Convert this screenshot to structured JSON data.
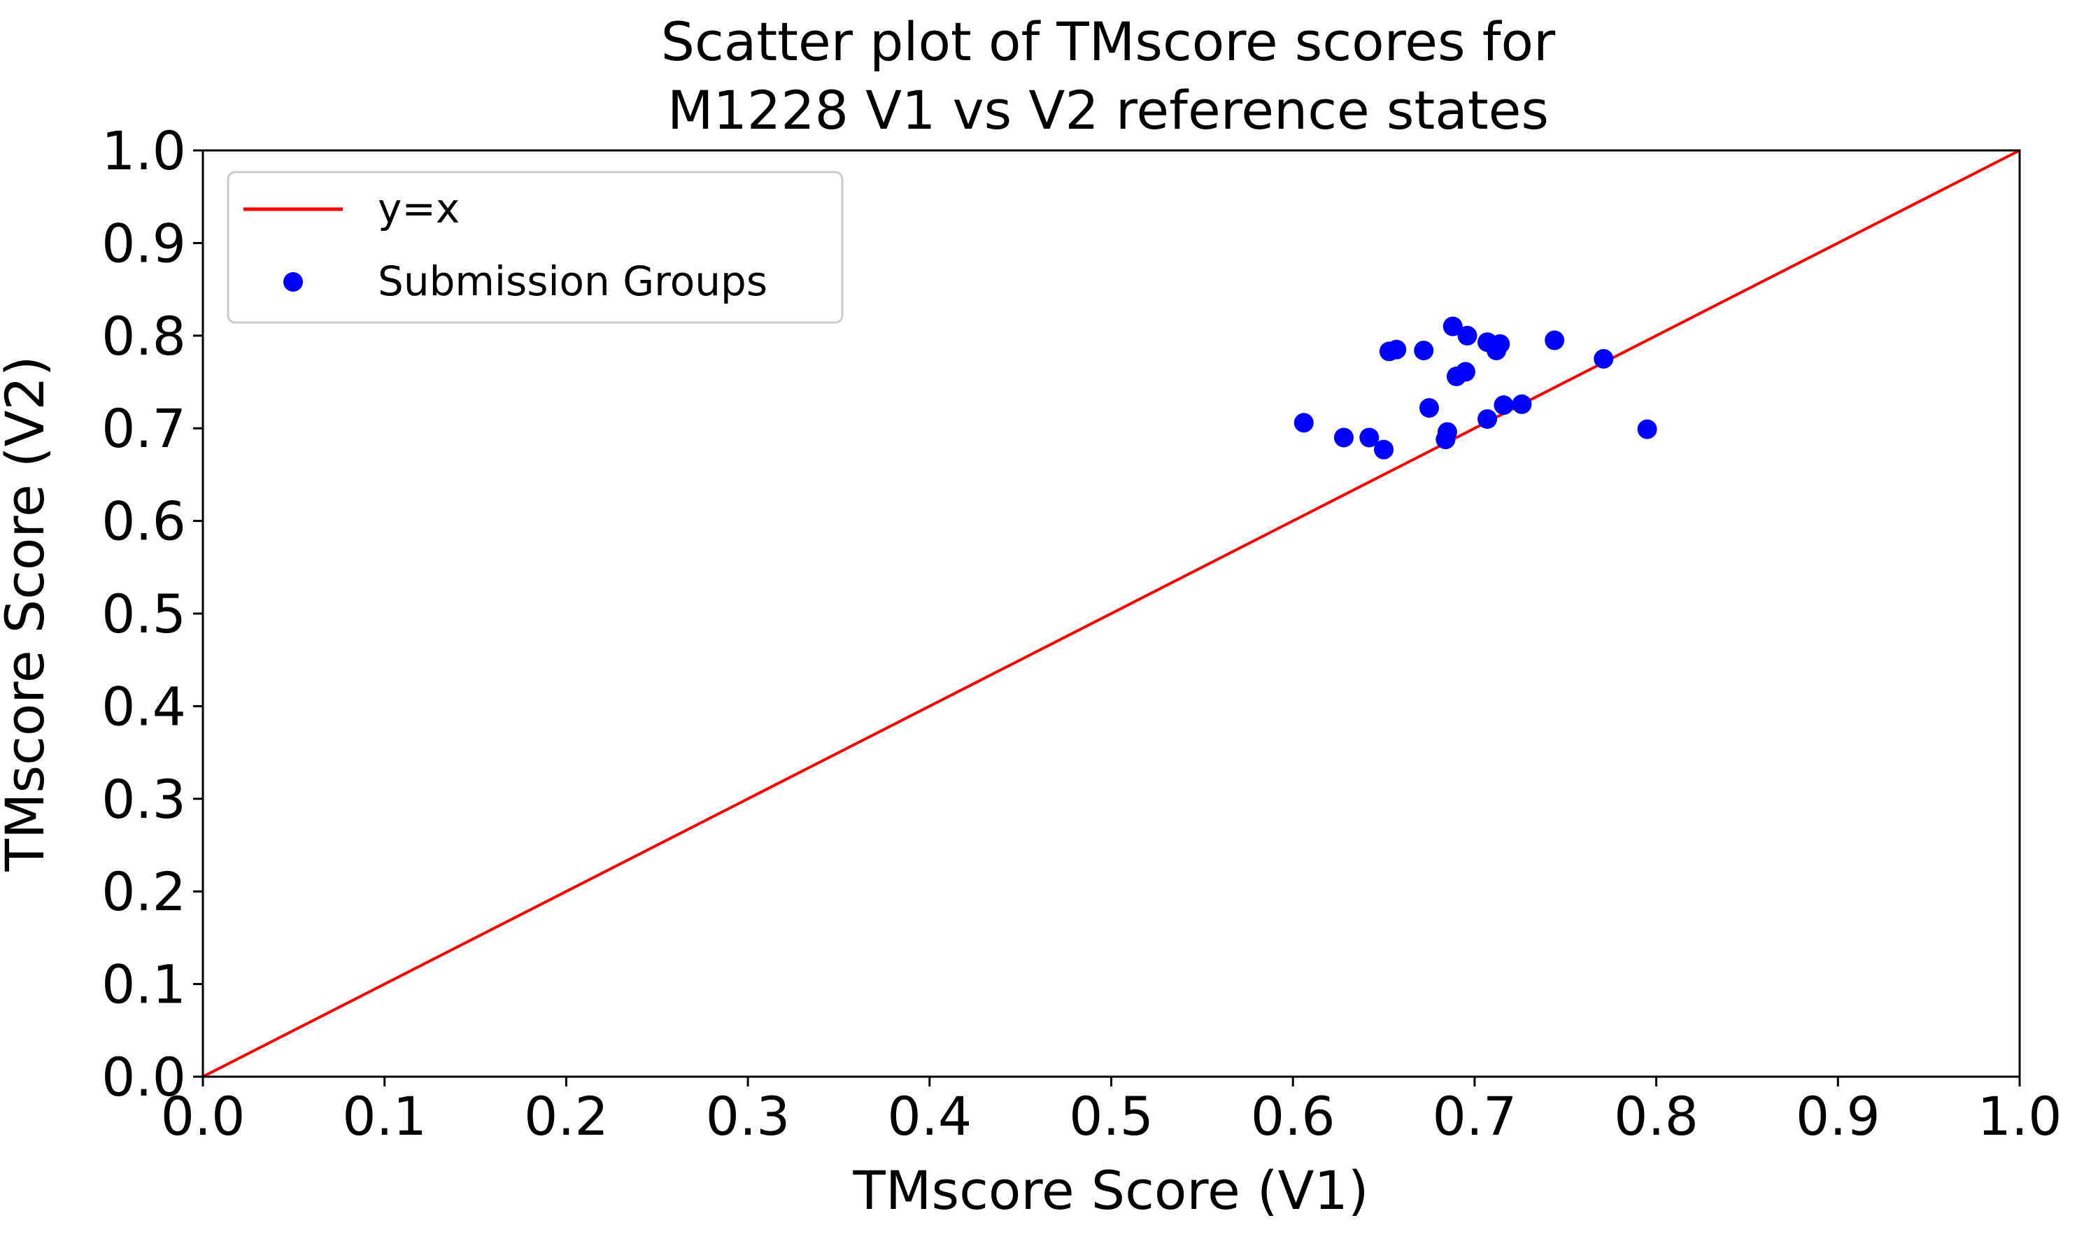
{
  "chart_data": {
    "type": "scatter",
    "title_line1": "Scatter plot of TMscore scores for",
    "title_line2": "M1228 V1 vs V2 reference states",
    "xlabel": "TMscore Score (V1)",
    "ylabel": "TMscore Score (V2)",
    "xlim": [
      0.0,
      1.0
    ],
    "ylim": [
      0.0,
      1.0
    ],
    "xticks": [
      "0.0",
      "0.1",
      "0.2",
      "0.3",
      "0.4",
      "0.5",
      "0.6",
      "0.7",
      "0.8",
      "0.9",
      "1.0"
    ],
    "yticks": [
      "0.0",
      "0.1",
      "0.2",
      "0.3",
      "0.4",
      "0.5",
      "0.6",
      "0.7",
      "0.8",
      "0.9",
      "1.0"
    ],
    "grid": false,
    "legend_position": "top-left",
    "reference_line": {
      "name": "y=x",
      "color": "#ff0000",
      "x": [
        0.0,
        1.0
      ],
      "y": [
        0.0,
        1.0
      ]
    },
    "series": [
      {
        "name": "Submission Groups",
        "color": "#0000ff",
        "points": [
          {
            "x": 0.606,
            "y": 0.706
          },
          {
            "x": 0.628,
            "y": 0.69
          },
          {
            "x": 0.642,
            "y": 0.69
          },
          {
            "x": 0.65,
            "y": 0.677
          },
          {
            "x": 0.653,
            "y": 0.783
          },
          {
            "x": 0.657,
            "y": 0.785
          },
          {
            "x": 0.672,
            "y": 0.784
          },
          {
            "x": 0.675,
            "y": 0.722
          },
          {
            "x": 0.684,
            "y": 0.688
          },
          {
            "x": 0.685,
            "y": 0.696
          },
          {
            "x": 0.688,
            "y": 0.81
          },
          {
            "x": 0.69,
            "y": 0.756
          },
          {
            "x": 0.695,
            "y": 0.761
          },
          {
            "x": 0.696,
            "y": 0.8
          },
          {
            "x": 0.707,
            "y": 0.71
          },
          {
            "x": 0.707,
            "y": 0.793
          },
          {
            "x": 0.712,
            "y": 0.784
          },
          {
            "x": 0.714,
            "y": 0.791
          },
          {
            "x": 0.716,
            "y": 0.725
          },
          {
            "x": 0.726,
            "y": 0.726
          },
          {
            "x": 0.744,
            "y": 0.795
          },
          {
            "x": 0.771,
            "y": 0.775
          },
          {
            "x": 0.795,
            "y": 0.699
          }
        ]
      }
    ]
  }
}
